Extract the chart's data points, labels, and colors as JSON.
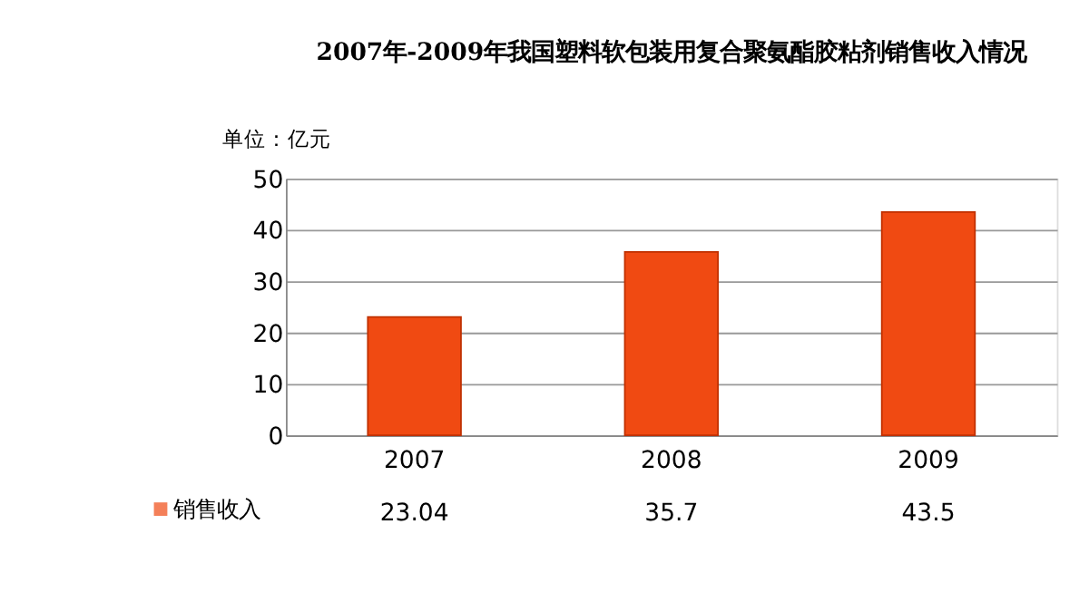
{
  "chart_data": {
    "type": "bar",
    "title": "2007年-2009年我国塑料软包装用复合聚氨酯胶粘剂销售收入情况",
    "ylabel": "单位：亿元",
    "categories": [
      "2007",
      "2008",
      "2009"
    ],
    "series": [
      {
        "name": "销售收入",
        "color": "#f04a12",
        "values": [
          23.04,
          35.7,
          43.5
        ]
      }
    ],
    "ylim": [
      0,
      50
    ],
    "yticks": [
      0,
      10,
      20,
      30,
      40,
      50
    ],
    "grid": "y",
    "data_labels": true,
    "legend": "bottom left"
  }
}
